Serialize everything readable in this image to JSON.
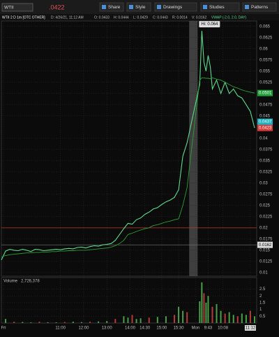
{
  "toolbar": {
    "symbol": "WTII",
    "last": ".0422",
    "buttons": [
      "Share",
      "Style",
      "Drawings",
      "Studies",
      "Patterns"
    ]
  },
  "info": [
    "WTII 2 D 1m [OTC OTHER]",
    "D: 4/26/21, 11:12 AM",
    "O: 0.0433",
    "H: 0.0444",
    "L: 0.0429",
    "C: 0.0443",
    "R: 0.0014",
    "V: 0.0162",
    "VWAP (-2.0, 2.0, DAY)"
  ],
  "chart_data": [
    {
      "type": "line",
      "annotation": "Hi: 0.064",
      "x": [
        0,
        2,
        4,
        6,
        8,
        10,
        12,
        14,
        16,
        18,
        20,
        22,
        24,
        26,
        28,
        30,
        32,
        34,
        36,
        38,
        40,
        42,
        44,
        46,
        48,
        50,
        52,
        54,
        56,
        58,
        60,
        62,
        64,
        66,
        68,
        70,
        72,
        74,
        76,
        78,
        80,
        82,
        84,
        86,
        88,
        94,
        95,
        96,
        97,
        98,
        99,
        100,
        102,
        104,
        106,
        108,
        110,
        112,
        114,
        116,
        118,
        120
      ],
      "series": [
        {
          "color": "#5fd98f",
          "values": [
            0.0128,
            0.0148,
            0.0152,
            0.015,
            0.0149,
            0.0152,
            0.015,
            0.0147,
            0.0152,
            0.0151,
            0.0149,
            0.015,
            0.0151,
            0.0152,
            0.0151,
            0.0153,
            0.0154,
            0.0153,
            0.0156,
            0.0157,
            0.0155,
            0.0158,
            0.016,
            0.0159,
            0.0162,
            0.0163,
            0.0165,
            0.0172,
            0.0185,
            0.0198,
            0.021,
            0.0208,
            0.0218,
            0.0222,
            0.023,
            0.0235,
            0.0242,
            0.0245,
            0.0252,
            0.0258,
            0.0262,
            0.0268,
            0.0285,
            0.036,
            0.039,
            0.052,
            0.064,
            0.057,
            0.055,
            0.0585,
            0.056,
            0.051,
            0.053,
            0.05,
            0.0525,
            0.05,
            0.051,
            0.0495,
            0.049,
            0.0475,
            0.046,
            0.0423
          ]
        },
        {
          "color": "#2f9e35",
          "values": [
            0.0135,
            0.0138,
            0.014,
            0.0141,
            0.0142,
            0.0143,
            0.0144,
            0.0144,
            0.0145,
            0.0145,
            0.0146,
            0.0146,
            0.0147,
            0.0147,
            0.0148,
            0.0148,
            0.0149,
            0.0149,
            0.015,
            0.015,
            0.015,
            0.0151,
            0.0152,
            0.0153,
            0.0154,
            0.0155,
            0.0157,
            0.016,
            0.0165,
            0.0172,
            0.0185,
            0.0188,
            0.0192,
            0.0195,
            0.0198,
            0.02,
            0.0205,
            0.0207,
            0.021,
            0.0213,
            0.0215,
            0.0218,
            0.022,
            0.025,
            0.029,
            0.053,
            0.0535,
            0.0535,
            0.0534,
            0.0534,
            0.0533,
            0.0535,
            0.0532,
            0.053,
            0.0525,
            0.052,
            0.0515,
            0.0512,
            0.0508,
            0.0505,
            0.0503,
            0.0501
          ]
        }
      ],
      "xlim": [
        0,
        121
      ],
      "xticks": [
        {
          "value": 1,
          "label": "Fri"
        },
        {
          "value": 28,
          "label": "11:00"
        },
        {
          "value": 39,
          "label": "12:00"
        },
        {
          "value": 50,
          "label": "13:00"
        },
        {
          "value": 61,
          "label": "14:00"
        },
        {
          "value": 68,
          "label": "14:30"
        },
        {
          "value": 76,
          "label": "15:00"
        },
        {
          "value": 84,
          "label": "15:30"
        },
        {
          "value": 92,
          "label": "Mon"
        },
        {
          "value": 98,
          "label": "9:43"
        },
        {
          "value": 105,
          "label": "10:08"
        },
        {
          "value": 118,
          "label": "11:12"
        }
      ],
      "ylim": [
        0.0092,
        0.0662
      ],
      "yticks": [
        0.065,
        0.0625,
        0.06,
        0.0575,
        0.055,
        0.0525,
        0.05,
        0.0475,
        0.045,
        0.04,
        0.0375,
        0.035,
        0.0325,
        0.03,
        0.0275,
        0.025,
        0.0225,
        0.02,
        0.0175,
        0.015,
        0.0125,
        0.01
      ],
      "grid": true,
      "shaded_x": [
        89,
        93
      ],
      "hlines": [
        {
          "value": 0.02,
          "color": "#c0392b"
        },
        {
          "value": 0.0162,
          "color": "#777777"
        }
      ],
      "price_tags": [
        {
          "value": 0.0501,
          "color": "#1f9e3a"
        },
        {
          "value": 0.0437,
          "color": "#1fb0bf"
        },
        {
          "value": 0.0423,
          "color": "#d63a3a"
        },
        {
          "value": 0.0162,
          "color": "#dddddd"
        }
      ]
    },
    {
      "type": "bar",
      "title": "Volume",
      "subtitle": "2,726,378",
      "color": "#4a9e4a",
      "x": [
        2,
        6,
        10,
        14,
        18,
        22,
        26,
        30,
        34,
        38,
        42,
        46,
        50,
        54,
        58,
        60,
        62,
        64,
        66,
        70,
        74,
        78,
        82,
        84,
        86,
        88,
        94,
        95,
        96,
        97,
        98,
        100,
        102,
        104,
        106,
        108,
        110,
        112,
        114,
        116,
        118,
        120
      ],
      "values": [
        0.3,
        0.1,
        0.08,
        0.05,
        0.1,
        0.06,
        0.05,
        0.08,
        0.1,
        0.07,
        0.1,
        0.12,
        0.15,
        0.3,
        0.5,
        0.4,
        0.6,
        0.3,
        0.35,
        0.4,
        0.45,
        0.5,
        0.6,
        1.2,
        0.9,
        0.8,
        1.6,
        3,
        2.2,
        1.5,
        2,
        1.2,
        1.4,
        0.9,
        0.7,
        0.8,
        0.6,
        0.5,
        0.7,
        0.6,
        0.9,
        0.5
      ],
      "ylim": [
        0,
        3.2
      ],
      "yticks": [
        0.5,
        1,
        1.5,
        2,
        2.5
      ]
    }
  ]
}
